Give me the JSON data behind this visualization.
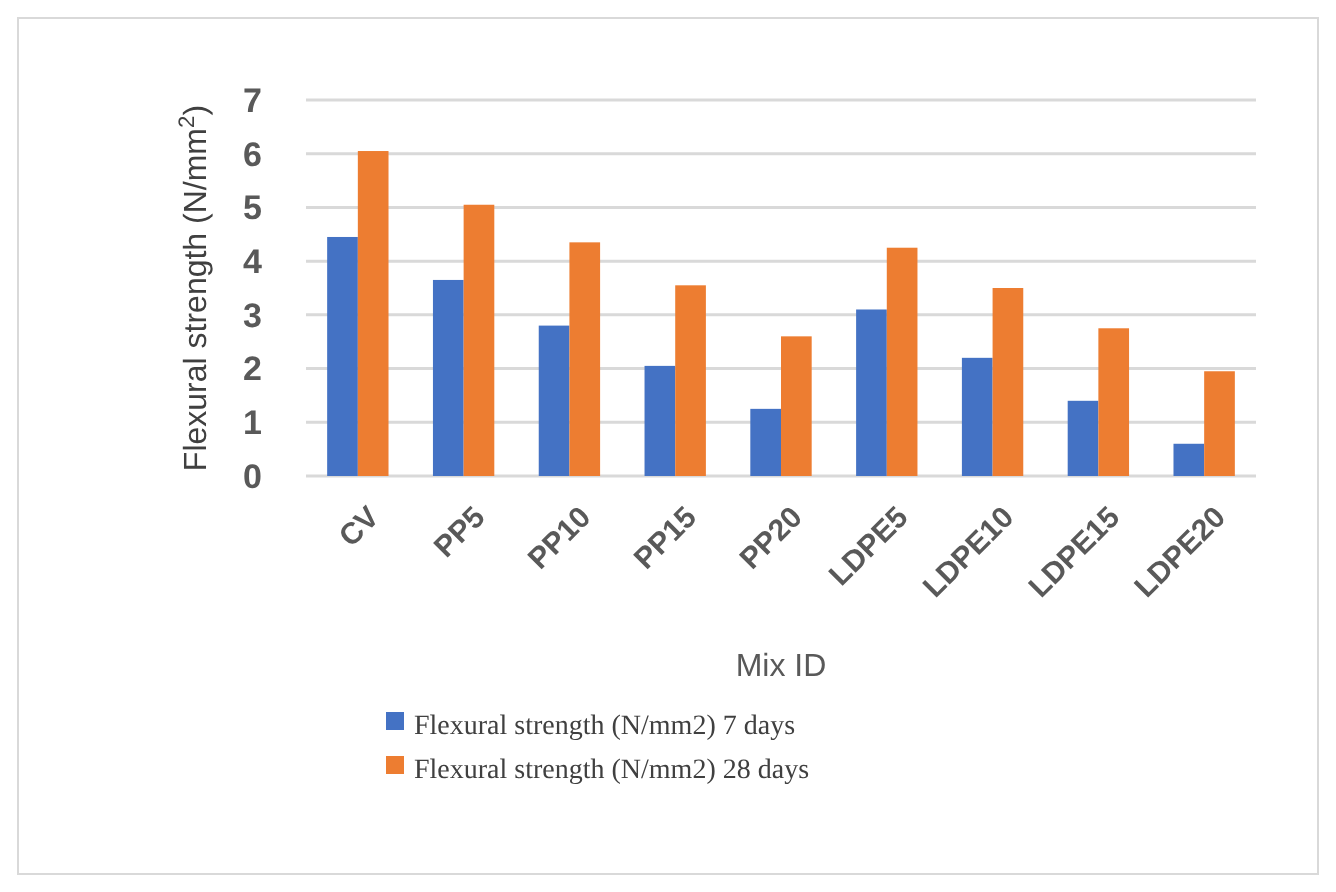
{
  "chart_data": {
    "type": "bar",
    "xlabel": "Mix ID",
    "ylabel": "Flexural  strength (N/mm$^{2}$)",
    "categories": [
      "CV",
      "PP5",
      "PP10",
      "PP15",
      "PP20",
      "LDPE5",
      "LDPE10",
      "LDPE15",
      "LDPE20"
    ],
    "series": [
      {
        "name": "Flexural strength (N/mm2) 7 days",
        "color": "#4472c4",
        "values": [
          4.45,
          3.65,
          2.8,
          2.05,
          1.25,
          3.1,
          2.2,
          1.4,
          0.6
        ]
      },
      {
        "name": "Flexural strength (N/mm2) 28 days",
        "color": "#ed7d31",
        "values": [
          6.05,
          5.05,
          4.35,
          3.55,
          2.6,
          4.25,
          3.5,
          2.75,
          1.95
        ]
      }
    ],
    "ylim": [
      0,
      7
    ],
    "yticks": [
      0,
      1,
      2,
      3,
      4,
      5,
      6,
      7
    ],
    "grid": "y",
    "legend": "bottom"
  }
}
